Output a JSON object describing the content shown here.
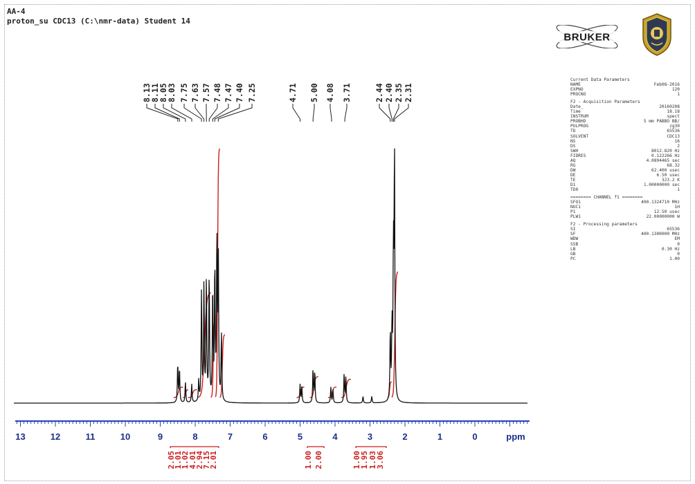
{
  "header": {
    "title": "AA-4",
    "subtitle": "proton_su CDC13 (C:\\nmr-data) Student 14"
  },
  "logos": {
    "bruker_text": "BRUKER"
  },
  "parameters": {
    "current": {
      "heading": "Current Data Parameters",
      "rows": [
        [
          "NAME",
          "Feb08-2016"
        ],
        [
          "EXPNO",
          "120"
        ],
        [
          "PROCNO",
          "1"
        ]
      ]
    },
    "acquisition": {
      "heading": "F2 - Acquisition Parameters",
      "rows": [
        [
          "Date_",
          "20160208"
        ],
        [
          "Time",
          "18.18"
        ],
        [
          "INSTRUM",
          "spect"
        ],
        [
          "PROBHD",
          "5 mm PABBO BB/"
        ],
        [
          "PULPROG",
          "zg30"
        ],
        [
          "TD",
          "65536"
        ],
        [
          "SOLVENT",
          "CDC13"
        ],
        [
          "NS",
          "16"
        ],
        [
          "DS",
          "2"
        ],
        [
          "SWH",
          "8012.820 Hz"
        ],
        [
          "FIDRES",
          "0.122266 Hz"
        ],
        [
          "AQ",
          "4.0894465 sec"
        ],
        [
          "RG",
          "68.32"
        ],
        [
          "DW",
          "62.400 usec"
        ],
        [
          "DE",
          "6.50 usec"
        ],
        [
          "TE",
          "323.2 K"
        ],
        [
          "D1",
          "1.00000000 sec"
        ],
        [
          "TD0",
          "1"
        ]
      ]
    },
    "channel": {
      "heading": "======== CHANNEL f1 ========",
      "rows": [
        [
          "SFO1",
          "400.1324710 MHz"
        ],
        [
          "NUC1",
          "1H"
        ],
        [
          "P1",
          "12.50 usec"
        ],
        [
          "PLW1",
          "22.00000000 W"
        ]
      ]
    },
    "processing": {
      "heading": "F2 - Processing parameters",
      "rows": [
        [
          "SI",
          "65536"
        ],
        [
          "SF",
          "400.1300000 MHz"
        ],
        [
          "WDW",
          "EM"
        ],
        [
          "SSB",
          "0"
        ],
        [
          "LB",
          "0.30 Hz"
        ],
        [
          "GB",
          "0"
        ],
        [
          "PC",
          "1.00"
        ]
      ]
    }
  },
  "chart_data": {
    "type": "line",
    "title": "",
    "xlabel": "ppm",
    "ylabel": "",
    "xlim": [
      13.0,
      -1.5
    ],
    "x_reversed": true,
    "grid": false,
    "xticks": [
      13,
      12,
      11,
      10,
      9,
      8,
      7,
      6,
      5,
      4,
      3,
      2,
      1,
      0
    ],
    "xtick_labels": [
      "13",
      "12",
      "11",
      "10",
      "9",
      "8",
      "7",
      "6",
      "5",
      "4",
      "3",
      "2",
      "1",
      "0"
    ],
    "peak_labels": [
      "8.13",
      "8.11",
      "8.05",
      "8.03",
      "7.75",
      "7.63",
      "7.57",
      "7.48",
      "7.47",
      "7.40",
      "7.25",
      "4.71",
      "5.00",
      "4.08",
      "3.71",
      "2.44",
      "2.40",
      "2.35",
      "2.31"
    ],
    "peaks": [
      {
        "ppm": 8.5,
        "height": 0.15
      },
      {
        "ppm": 8.45,
        "height": 0.13
      },
      {
        "ppm": 8.28,
        "height": 0.08
      },
      {
        "ppm": 8.1,
        "height": 0.07
      },
      {
        "ppm": 7.9,
        "height": 0.08
      },
      {
        "ppm": 7.82,
        "height": 0.42
      },
      {
        "ppm": 7.75,
        "height": 0.45
      },
      {
        "ppm": 7.68,
        "height": 0.47
      },
      {
        "ppm": 7.6,
        "height": 0.49
      },
      {
        "ppm": 7.5,
        "height": 0.43
      },
      {
        "ppm": 7.44,
        "height": 0.51
      },
      {
        "ppm": 7.38,
        "height": 0.62
      },
      {
        "ppm": 7.34,
        "height": 0.57
      },
      {
        "ppm": 7.25,
        "height": 0.26
      },
      {
        "ppm": 5.0,
        "height": 0.07
      },
      {
        "ppm": 4.95,
        "height": 0.06
      },
      {
        "ppm": 4.63,
        "height": 0.13
      },
      {
        "ppm": 4.58,
        "height": 0.12
      },
      {
        "ppm": 4.12,
        "height": 0.06
      },
      {
        "ppm": 4.06,
        "height": 0.05
      },
      {
        "ppm": 3.74,
        "height": 0.11
      },
      {
        "ppm": 3.69,
        "height": 0.1
      },
      {
        "ppm": 3.2,
        "height": 0.025
      },
      {
        "ppm": 2.95,
        "height": 0.025
      },
      {
        "ppm": 2.42,
        "height": 0.26
      },
      {
        "ppm": 2.37,
        "height": 0.28
      },
      {
        "ppm": 2.33,
        "height": 0.55
      },
      {
        "ppm": 2.3,
        "height": 0.95
      }
    ],
    "integrals": [
      {
        "from": 8.62,
        "to": 8.35,
        "rise": 0.04
      },
      {
        "from": 8.35,
        "to": 8.2,
        "rise": 0.03
      },
      {
        "from": 8.2,
        "to": 7.95,
        "rise": 0.03
      },
      {
        "from": 7.92,
        "to": 7.55,
        "rise": 0.4
      },
      {
        "from": 7.55,
        "to": 7.42,
        "rise": 0.3
      },
      {
        "from": 7.42,
        "to": 7.3,
        "rise": 0.95
      },
      {
        "from": 7.3,
        "to": 7.15,
        "rise": 0.24
      },
      {
        "from": 5.1,
        "to": 4.88,
        "rise": 0.04
      },
      {
        "from": 4.72,
        "to": 4.48,
        "rise": 0.08
      },
      {
        "from": 4.2,
        "to": 3.96,
        "rise": 0.04
      },
      {
        "from": 3.82,
        "to": 3.55,
        "rise": 0.07
      },
      {
        "from": 2.5,
        "to": 2.38,
        "rise": 0.06
      },
      {
        "from": 2.38,
        "to": 2.2,
        "rise": 0.48
      }
    ],
    "integral_values": [
      "2.05",
      "1.01",
      "1.02",
      "4.01",
      "2.94",
      "7.15",
      "2.01",
      "1.00",
      "2.00",
      "1.00",
      "1.95",
      "1.03",
      "3.06"
    ],
    "colors": {
      "spectrum": "#111111",
      "integral": "#cc1e1e",
      "axis": "#2440b8"
    }
  }
}
